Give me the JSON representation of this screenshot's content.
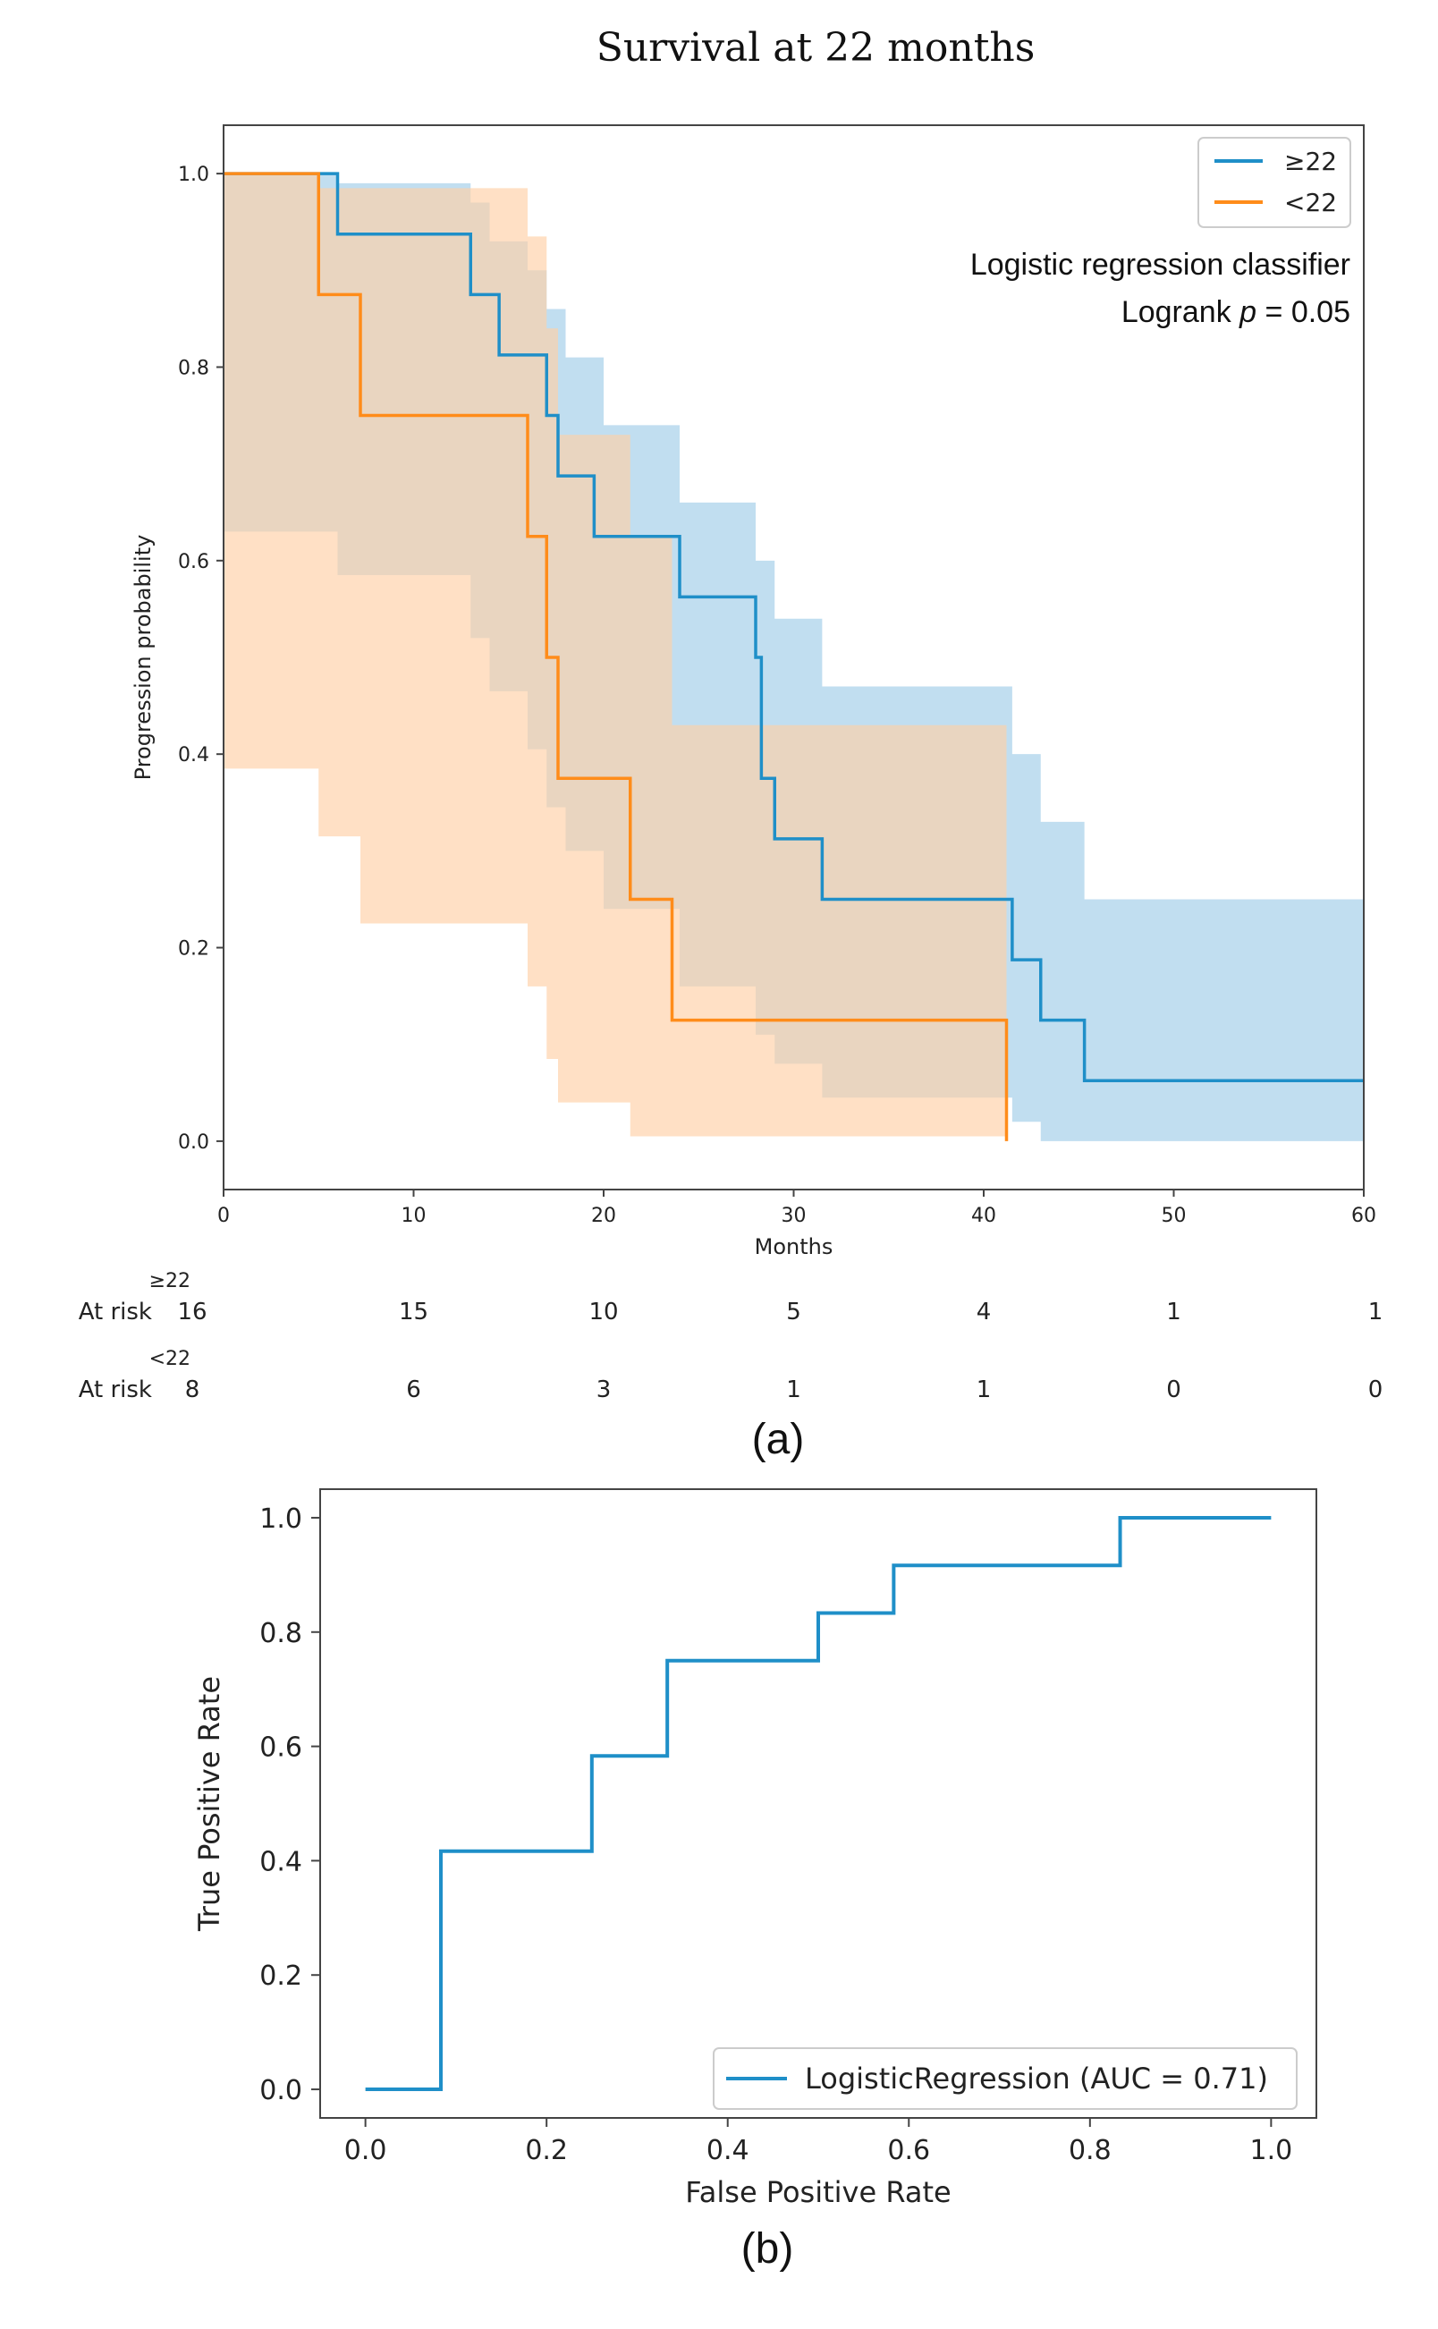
{
  "figure_title": "Survival at 22 months",
  "colors": {
    "blue": "#1f8fc8",
    "orange": "#ff8c1a",
    "blue_ci": "#9fcde8",
    "orange_ci": "#ffd0a6",
    "axis": "#444444"
  },
  "chart_data": [
    {
      "type": "line",
      "subtype": "kaplan-meier",
      "panel_label": "(a)",
      "xlabel": "Months",
      "ylabel": "Progression probability",
      "xlim": [
        0,
        60
      ],
      "ylim": [
        -0.05,
        1.05
      ],
      "xticks": [
        0,
        10,
        20,
        30,
        40,
        50,
        60
      ],
      "xtick_labels": [
        "0",
        "10",
        "20",
        "30",
        "40",
        "50",
        "60"
      ],
      "yticks": [
        0.0,
        0.2,
        0.4,
        0.6,
        0.8,
        1.0
      ],
      "ytick_labels": [
        "0.0",
        "0.2",
        "0.4",
        "0.6",
        "0.8",
        "1.0"
      ],
      "legend_position": "top-right",
      "annotation": {
        "line1": "Logistic regression classifier",
        "line2_prefix": "Logrank ",
        "line2_p": "p",
        "line2_suffix": " = 0.05"
      },
      "series": [
        {
          "name": "≥22",
          "color": "#1f8fc8",
          "x": [
            0,
            6,
            13,
            14.5,
            17,
            17.6,
            19.5,
            24,
            28,
            28.3,
            29,
            31.5,
            41.5,
            43,
            45.3,
            60
          ],
          "y": [
            1.0,
            0.9375,
            0.875,
            0.8125,
            0.75,
            0.6875,
            0.625,
            0.5625,
            0.5,
            0.375,
            0.3125,
            0.25,
            0.1875,
            0.125,
            0.0625,
            0.0625
          ],
          "ci_x": [
            0,
            6,
            13,
            14,
            16,
            17,
            18,
            20,
            24,
            28,
            29,
            31.5,
            41.5,
            43,
            45.3,
            60
          ],
          "ci_lower": [
            1.0,
            0.63,
            0.585,
            0.52,
            0.465,
            0.405,
            0.345,
            0.3,
            0.24,
            0.16,
            0.11,
            0.08,
            0.045,
            0.02,
            0.0,
            0.0
          ],
          "ci_upper": [
            1.0,
            0.99,
            0.97,
            0.93,
            0.9,
            0.86,
            0.81,
            0.74,
            0.66,
            0.6,
            0.54,
            0.47,
            0.4,
            0.33,
            0.25,
            0.25
          ]
        },
        {
          "name": "<22",
          "color": "#ff8c1a",
          "x": [
            0,
            5,
            7.2,
            16,
            17,
            17.6,
            21.4,
            23.6,
            41.2
          ],
          "y": [
            1.0,
            0.875,
            0.75,
            0.625,
            0.5,
            0.375,
            0.25,
            0.125,
            0.125
          ],
          "drop_to": 0.0,
          "ci_x": [
            0,
            5,
            7.2,
            16,
            17,
            17.6,
            21.4,
            23.6,
            41.2
          ],
          "ci_lower": [
            1.0,
            0.385,
            0.315,
            0.225,
            0.16,
            0.085,
            0.04,
            0.005,
            0.005
          ],
          "ci_upper": [
            1.0,
            0.985,
            0.985,
            0.935,
            0.84,
            0.73,
            0.625,
            0.43,
            0.43
          ]
        }
      ],
      "at_risk": {
        "label": "At risk",
        "times": [
          0,
          10,
          20,
          30,
          40,
          50,
          60
        ],
        "groups": [
          {
            "name": "≥22",
            "counts": [
              "16",
              "15",
              "10",
              "5",
              "4",
              "1",
              "1"
            ]
          },
          {
            "name": "<22",
            "counts": [
              "8",
              "6",
              "3",
              "1",
              "1",
              "0",
              "0"
            ]
          }
        ]
      }
    },
    {
      "type": "line",
      "subtype": "roc",
      "panel_label": "(b)",
      "xlabel": "False Positive Rate",
      "ylabel": "True Positive Rate",
      "xlim": [
        -0.05,
        1.05
      ],
      "ylim": [
        -0.05,
        1.05
      ],
      "xticks": [
        0.0,
        0.2,
        0.4,
        0.6,
        0.8,
        1.0
      ],
      "xtick_labels": [
        "0.0",
        "0.2",
        "0.4",
        "0.6",
        "0.8",
        "1.0"
      ],
      "yticks": [
        0.0,
        0.2,
        0.4,
        0.6,
        0.8,
        1.0
      ],
      "ytick_labels": [
        "0.0",
        "0.2",
        "0.4",
        "0.6",
        "0.8",
        "1.0"
      ],
      "legend_position": "bottom-right",
      "series": [
        {
          "name": "LogisticRegression (AUC = 0.71)",
          "color": "#1f8fc8",
          "fpr": [
            0.0,
            0.0833,
            0.0833,
            0.25,
            0.25,
            0.3333,
            0.3333,
            0.5,
            0.5,
            0.5833,
            0.5833,
            0.8333,
            0.8333,
            1.0
          ],
          "tpr": [
            0.0,
            0.0,
            0.4167,
            0.4167,
            0.5833,
            0.5833,
            0.75,
            0.75,
            0.8333,
            0.8333,
            0.9167,
            0.9167,
            1.0,
            1.0
          ]
        }
      ]
    }
  ]
}
